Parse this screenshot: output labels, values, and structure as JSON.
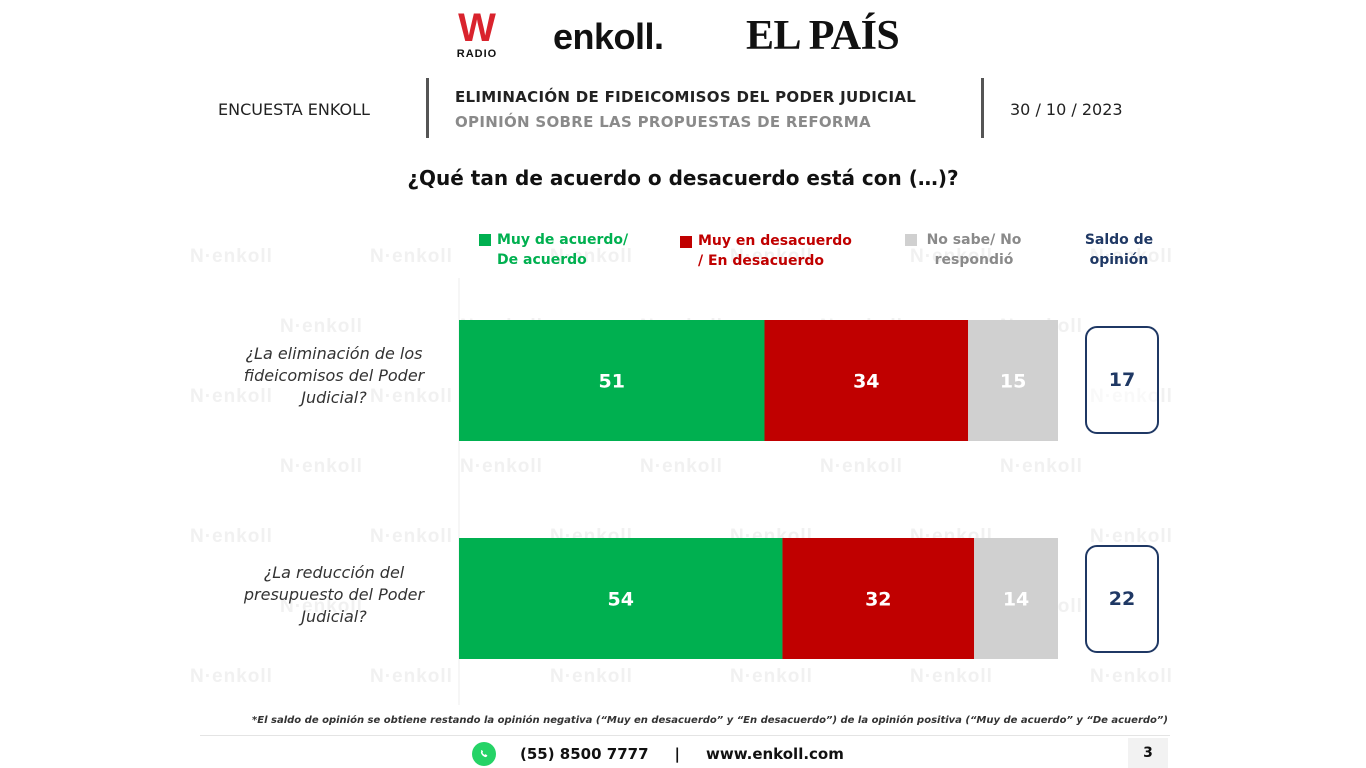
{
  "logos": {
    "wradio_mark": "W",
    "wradio_sub": "RADIO",
    "enkoll": "enkoll.",
    "elpais": "EL PAÍS",
    "watermark": "N·enkoll"
  },
  "header": {
    "survey_name": "ENCUESTA ENKOLL",
    "title": "ELIMINACIÓN DE FIDEICOMISOS DEL PODER JUDICIAL",
    "subtitle": "OPINIÓN SOBRE LAS PROPUESTAS DE REFORMA",
    "date": "30 / 10 / 2023"
  },
  "question": "¿Qué tan de acuerdo o desacuerdo está con (…)?",
  "legend": {
    "agree": [
      "Muy de acuerdo/",
      "De acuerdo"
    ],
    "disagree": [
      "Muy en desacuerdo",
      "/ En desacuerdo"
    ],
    "unknown": [
      "No sabe/ No",
      "respondió"
    ],
    "saldo": [
      "Saldo de",
      "opinión"
    ]
  },
  "colors": {
    "agree": "#00b050",
    "disagree": "#c00000",
    "unknown": "#d0d0d0",
    "saldo": "#1f3864"
  },
  "chart_data": {
    "type": "bar",
    "orientation": "horizontal-stacked",
    "categories": [
      [
        "¿La eliminación de los",
        "fideicomisos del Poder",
        "Judicial?"
      ],
      [
        "¿La reducción del",
        "presupuesto del Poder",
        "Judicial?"
      ]
    ],
    "series": [
      {
        "name": "Muy de acuerdo/ De acuerdo",
        "values": [
          51,
          54
        ]
      },
      {
        "name": "Muy en desacuerdo / En desacuerdo",
        "values": [
          34,
          32
        ]
      },
      {
        "name": "No sabe/ No respondió",
        "values": [
          15,
          14
        ]
      }
    ],
    "saldo_de_opinion": [
      17,
      22
    ],
    "xlim": [
      0,
      100
    ],
    "grid": false,
    "legend_position": "top"
  },
  "footnote": "*El saldo de opinión se obtiene restando la opinión negativa (“Muy en desacuerdo” y “En desacuerdo”) de la opinión positiva (“Muy de acuerdo” y “De acuerdo”)",
  "footer": {
    "phone": "(55) 8500 7777",
    "separator": "|",
    "website": "www.enkoll.com",
    "page": "3",
    "icon": "whatsapp-icon"
  }
}
